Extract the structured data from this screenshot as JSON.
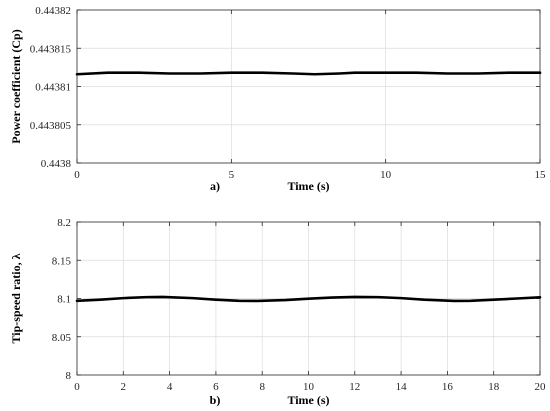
{
  "chart_data": [
    {
      "type": "line",
      "panel_label": "a)",
      "xlabel": "Time (s)",
      "ylabel": "Power coefficient (Cp)",
      "xlim": [
        0,
        15
      ],
      "ylim": [
        0.4438,
        0.44382
      ],
      "xticks": [
        0,
        5,
        10,
        15
      ],
      "xtick_labels": [
        "0",
        "5",
        "10",
        "15"
      ],
      "yticks": [
        0.4438,
        0.443805,
        0.44381,
        0.443815,
        0.44382
      ],
      "ytick_labels": [
        "0.4438",
        "0.443805",
        "0.44381",
        "0.443815",
        "0.44382"
      ],
      "grid": true,
      "series": [
        {
          "x": [
            0,
            1,
            2,
            3,
            4,
            5,
            6,
            7,
            7.7,
            8.5,
            9,
            10,
            11,
            12,
            13,
            14,
            15
          ],
          "y": [
            0.4438116,
            0.4438118,
            0.4438118,
            0.4438117,
            0.4438117,
            0.4438118,
            0.4438118,
            0.4438117,
            0.4438116,
            0.4438117,
            0.4438118,
            0.4438118,
            0.4438118,
            0.4438117,
            0.4438117,
            0.4438118,
            0.4438118
          ]
        }
      ]
    },
    {
      "type": "line",
      "panel_label": "b)",
      "xlabel": "Time (s)",
      "ylabel": "Tip-speed ratio, λ",
      "xlim": [
        0,
        20
      ],
      "ylim": [
        8,
        8.2
      ],
      "xticks": [
        0,
        2,
        4,
        6,
        8,
        10,
        12,
        14,
        16,
        18,
        20
      ],
      "xtick_labels": [
        "0",
        "2",
        "4",
        "6",
        "8",
        "10",
        "12",
        "14",
        "16",
        "18",
        "20"
      ],
      "yticks": [
        8,
        8.05,
        8.1,
        8.15,
        8.2
      ],
      "ytick_labels": [
        "8",
        "8.05",
        "8.1",
        "8.15",
        "8.2"
      ],
      "grid": true,
      "series": [
        {
          "x": [
            0,
            1,
            2,
            3,
            3.7,
            5,
            6,
            7,
            7.8,
            9,
            10,
            11,
            12,
            13,
            14,
            15,
            16.3,
            17,
            18,
            19,
            20
          ],
          "y": [
            8.097,
            8.0985,
            8.1005,
            8.1018,
            8.102,
            8.1005,
            8.0985,
            8.097,
            8.0968,
            8.098,
            8.0998,
            8.1012,
            8.102,
            8.1018,
            8.1005,
            8.0985,
            8.0968,
            8.097,
            8.0985,
            8.1,
            8.1015
          ]
        }
      ]
    }
  ]
}
